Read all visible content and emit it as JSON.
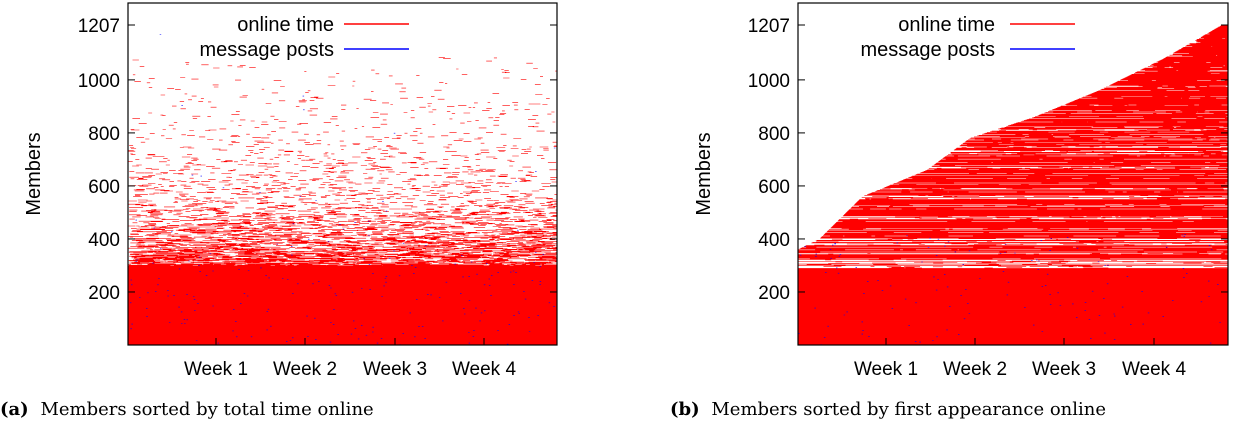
{
  "chart_data": [
    {
      "type": "scatter",
      "ylabel": "Members",
      "y_ticks": [
        200,
        400,
        600,
        800,
        1000,
        1207
      ],
      "x_ticks": [
        "Week 1",
        "Week 2",
        "Week 3",
        "Week 4"
      ],
      "ylim": [
        0,
        1290
      ],
      "legend_position": "top-right",
      "legend": [
        {
          "name": "online time",
          "color": "#ff0000"
        },
        {
          "name": "message posts",
          "color": "#0000ff"
        }
      ],
      "caption_letter": "(a)",
      "caption_text": "Members sorted by total time online",
      "density_profile": [
        [
          0,
          1.0
        ],
        [
          300,
          0.92
        ],
        [
          400,
          0.55
        ],
        [
          550,
          0.2
        ],
        [
          800,
          0.06
        ],
        [
          1100,
          0.01
        ],
        [
          1207,
          0.0
        ]
      ]
    },
    {
      "type": "scatter",
      "ylabel": "Members",
      "y_ticks": [
        200,
        400,
        600,
        800,
        1000,
        1207
      ],
      "x_ticks": [
        "Week 1",
        "Week 2",
        "Week 3",
        "Week 4"
      ],
      "ylim": [
        0,
        1290
      ],
      "legend_position": "top-right",
      "legend": [
        {
          "name": "online time",
          "color": "#ff0000"
        },
        {
          "name": "message posts",
          "color": "#0000ff"
        }
      ],
      "caption_letter": "(b)",
      "caption_text": "Members sorted by first appearance online",
      "first_appearance_curve": [
        [
          0,
          360
        ],
        [
          0.05,
          400
        ],
        [
          0.15,
          560
        ],
        [
          0.3,
          660
        ],
        [
          0.4,
          780
        ],
        [
          0.55,
          860
        ],
        [
          0.7,
          960
        ],
        [
          0.85,
          1080
        ],
        [
          1.0,
          1220
        ]
      ]
    }
  ]
}
